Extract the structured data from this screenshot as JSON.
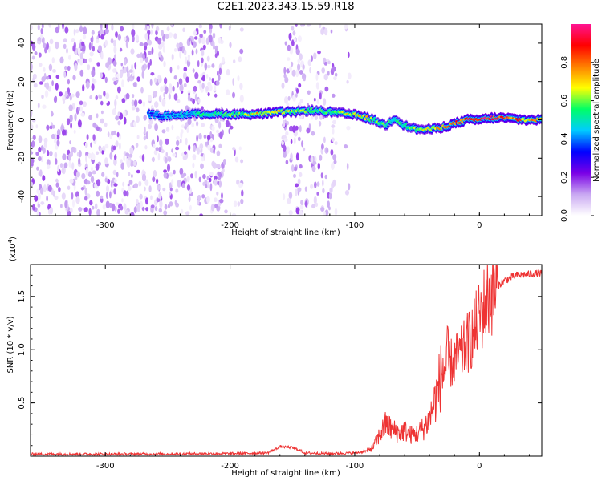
{
  "page": {
    "title": "C2E1.2023.343.15.59.R18"
  },
  "colors": {
    "snr_line": "#ee3333",
    "axes": "#000000"
  },
  "chart_data": [
    {
      "type": "heatmap",
      "title": "C2E1.2023.343.15.59.R18",
      "xlabel": "Height of straight line (km)",
      "ylabel": "Frequency (Hz)",
      "xlim": [
        -360,
        50
      ],
      "ylim": [
        -50,
        50
      ],
      "x_ticks": [
        -300,
        -200,
        -100,
        0
      ],
      "x_tick_labels": [
        "-300",
        "-200",
        "-100",
        "0"
      ],
      "y_ticks": [
        -40,
        -20,
        0,
        20,
        40
      ],
      "y_tick_labels": [
        "-40",
        "-20",
        "0",
        "20",
        "40"
      ],
      "colorbar": {
        "label": "Normalized spectral amplitude",
        "range": [
          0,
          1
        ],
        "ticks": [
          "0.0",
          "0.2",
          "0.4",
          "0.6",
          "0.8"
        ],
        "colormap": [
          "#ffffff",
          "#c9a8f2",
          "#7a00e6",
          "#0000ff",
          "#00ccff",
          "#00ff66",
          "#ffff00",
          "#ff8000",
          "#ff0000",
          "#ff1493"
        ]
      },
      "ridge": [
        {
          "x": -265,
          "y": 3,
          "amp": 0.35
        },
        {
          "x": -255,
          "y": 2,
          "amp": 0.4
        },
        {
          "x": -230,
          "y": 3,
          "amp": 0.45
        },
        {
          "x": -210,
          "y": 3,
          "amp": 0.55
        },
        {
          "x": -190,
          "y": 3,
          "amp": 0.6
        },
        {
          "x": -175,
          "y": 3,
          "amp": 0.7
        },
        {
          "x": -160,
          "y": 4,
          "amp": 0.7
        },
        {
          "x": -150,
          "y": 4,
          "amp": 0.6
        },
        {
          "x": -135,
          "y": 5,
          "amp": 0.55
        },
        {
          "x": -120,
          "y": 4,
          "amp": 0.55
        },
        {
          "x": -105,
          "y": 3,
          "amp": 0.65
        },
        {
          "x": -95,
          "y": 2,
          "amp": 0.7
        },
        {
          "x": -85,
          "y": 0,
          "amp": 0.6
        },
        {
          "x": -75,
          "y": -3,
          "amp": 0.55
        },
        {
          "x": -68,
          "y": 1,
          "amp": 0.5
        },
        {
          "x": -60,
          "y": -3,
          "amp": 0.55
        },
        {
          "x": -50,
          "y": -5,
          "amp": 0.6
        },
        {
          "x": -40,
          "y": -5,
          "amp": 0.65
        },
        {
          "x": -30,
          "y": -4,
          "amp": 0.7
        },
        {
          "x": -20,
          "y": -2,
          "amp": 0.8
        },
        {
          "x": -10,
          "y": 0,
          "amp": 0.85
        },
        {
          "x": 0,
          "y": 0,
          "amp": 0.9
        },
        {
          "x": 10,
          "y": 1,
          "amp": 0.9
        },
        {
          "x": 20,
          "y": 1,
          "amp": 0.85
        },
        {
          "x": 35,
          "y": 0,
          "amp": 0.75
        },
        {
          "x": 50,
          "y": 0,
          "amp": 0.7
        }
      ],
      "noise_bands": [
        {
          "x_start": -360,
          "x_end": -205,
          "density": 0.9
        },
        {
          "x_start": -205,
          "x_end": -190,
          "density": 0.35
        },
        {
          "x_start": -158,
          "x_end": -115,
          "density": 0.7
        },
        {
          "x_start": -108,
          "x_end": -104,
          "density": 0.4
        }
      ]
    },
    {
      "type": "line",
      "xlabel": "Height of straight line (km)",
      "ylabel": "SNR (10 * v/v)",
      "y_exponent_label": "(x10",
      "y_exponent_power": "4",
      "y_exponent_close": ")",
      "xlim": [
        -360,
        50
      ],
      "ylim": [
        0,
        18000
      ],
      "x_ticks": [
        -300,
        -200,
        -100,
        0
      ],
      "x_tick_labels": [
        "-300",
        "-200",
        "-100",
        "0"
      ],
      "y_ticks": [
        5000,
        10000,
        15000
      ],
      "y_tick_labels": [
        "0.5",
        "1.0",
        "1.5"
      ],
      "series": [
        {
          "x": [
            -360,
            -300,
            -250,
            -200,
            -170,
            -160,
            -150,
            -145,
            -140,
            -120,
            -100,
            -90,
            -85,
            -80,
            -75,
            -70,
            -65,
            -60,
            -55,
            -50,
            -45,
            -40,
            -35,
            -30,
            -25,
            -20,
            -15,
            -10,
            -5,
            0,
            5,
            10,
            15,
            20,
            30,
            40,
            50
          ],
          "y": [
            200,
            200,
            220,
            250,
            300,
            900,
            800,
            600,
            300,
            250,
            300,
            500,
            900,
            2000,
            3000,
            2500,
            2200,
            2400,
            2000,
            2100,
            2600,
            3500,
            5500,
            8000,
            8500,
            9000,
            9500,
            10500,
            11500,
            13000,
            14500,
            15500,
            16000,
            16500,
            17000,
            17100,
            17200
          ]
        }
      ]
    }
  ]
}
